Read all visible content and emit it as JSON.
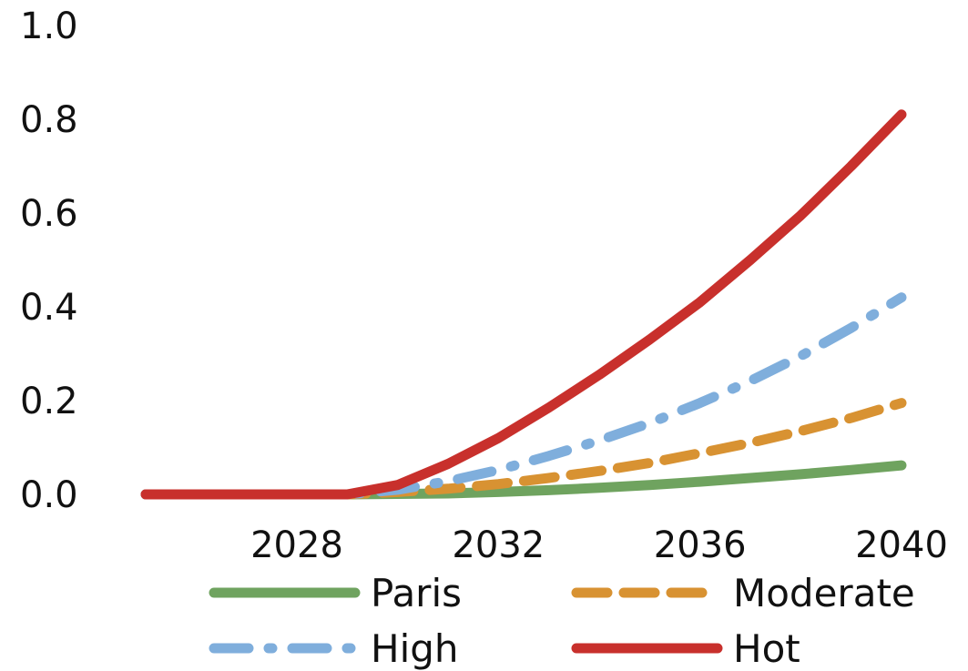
{
  "chart_data": {
    "type": "line",
    "title": "",
    "xlabel": "",
    "ylabel": "",
    "xlim": [
      2025,
      2040
    ],
    "ylim": [
      0,
      1.0
    ],
    "x_ticks": [
      "2028",
      "2032",
      "2036",
      "2040"
    ],
    "y_ticks": [
      "0.0",
      "0.2",
      "0.4",
      "0.6",
      "0.8",
      "1.0"
    ],
    "grid": false,
    "legend_position": "bottom",
    "x": [
      2025,
      2026,
      2027,
      2028,
      2029,
      2030,
      2031,
      2032,
      2033,
      2034,
      2035,
      2036,
      2037,
      2038,
      2039,
      2040
    ],
    "series": [
      {
        "name": "Paris",
        "color": "#6FA35F",
        "style": "solid",
        "values": [
          0.0,
          0.0,
          0.0,
          0.0,
          0.0,
          0.001,
          0.002,
          0.005,
          0.009,
          0.014,
          0.02,
          0.027,
          0.035,
          0.043,
          0.052,
          0.062
        ]
      },
      {
        "name": "Moderate",
        "color": "#D89232",
        "style": "dashed",
        "values": [
          0.0,
          0.0,
          0.0,
          0.0,
          0.0,
          0.005,
          0.012,
          0.022,
          0.035,
          0.05,
          0.067,
          0.088,
          0.11,
          0.135,
          0.163,
          0.195
        ]
      },
      {
        "name": "High",
        "color": "#7FAEDC",
        "style": "dashdot",
        "values": [
          0.0,
          0.0,
          0.0,
          0.0,
          0.0,
          0.01,
          0.028,
          0.052,
          0.082,
          0.115,
          0.152,
          0.195,
          0.242,
          0.295,
          0.355,
          0.42
        ]
      },
      {
        "name": "Hot",
        "color": "#C8302C",
        "style": "solid",
        "values": [
          0.0,
          0.0,
          0.0,
          0.0,
          0.0,
          0.02,
          0.065,
          0.12,
          0.185,
          0.255,
          0.33,
          0.41,
          0.5,
          0.595,
          0.7,
          0.81
        ]
      }
    ]
  }
}
